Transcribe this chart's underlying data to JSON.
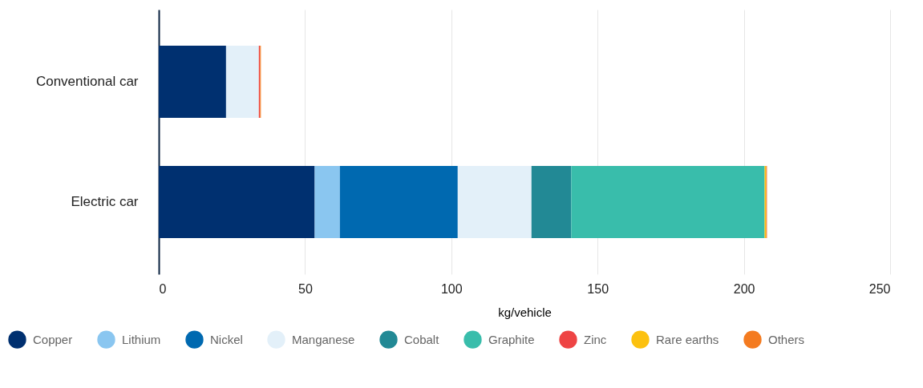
{
  "chart_data": {
    "type": "bar",
    "orientation": "horizontal",
    "stacked": true,
    "xlabel": "kg/vehicle",
    "categories": [
      "Conventional car",
      "Electric car"
    ],
    "series": [
      {
        "name": "Copper",
        "color": "#003070",
        "values": [
          23.0,
          53.3
        ]
      },
      {
        "name": "Lithium",
        "color": "#8ac6f0",
        "values": [
          0,
          8.6
        ]
      },
      {
        "name": "Nickel",
        "color": "#0069b0",
        "values": [
          0,
          40.3
        ]
      },
      {
        "name": "Manganese",
        "color": "#e3f0f9",
        "values": [
          11.2,
          25.2
        ]
      },
      {
        "name": "Cobalt",
        "color": "#228995",
        "values": [
          0,
          13.6
        ]
      },
      {
        "name": "Graphite",
        "color": "#39bdab",
        "values": [
          0,
          66.1
        ]
      },
      {
        "name": "Zinc",
        "color": "#ee4444",
        "values": [
          0.4,
          null
        ]
      },
      {
        "name": "Rare earths",
        "color": "#fcc10f",
        "values": [
          0,
          0.5
        ]
      },
      {
        "name": "Others",
        "color": "#f47b20",
        "values": [
          0.3,
          0.3
        ]
      }
    ],
    "xlim": [
      0,
      250
    ],
    "xticks": [
      0,
      50,
      100,
      150,
      200,
      250
    ],
    "grid": "x",
    "legend": "bottom"
  }
}
